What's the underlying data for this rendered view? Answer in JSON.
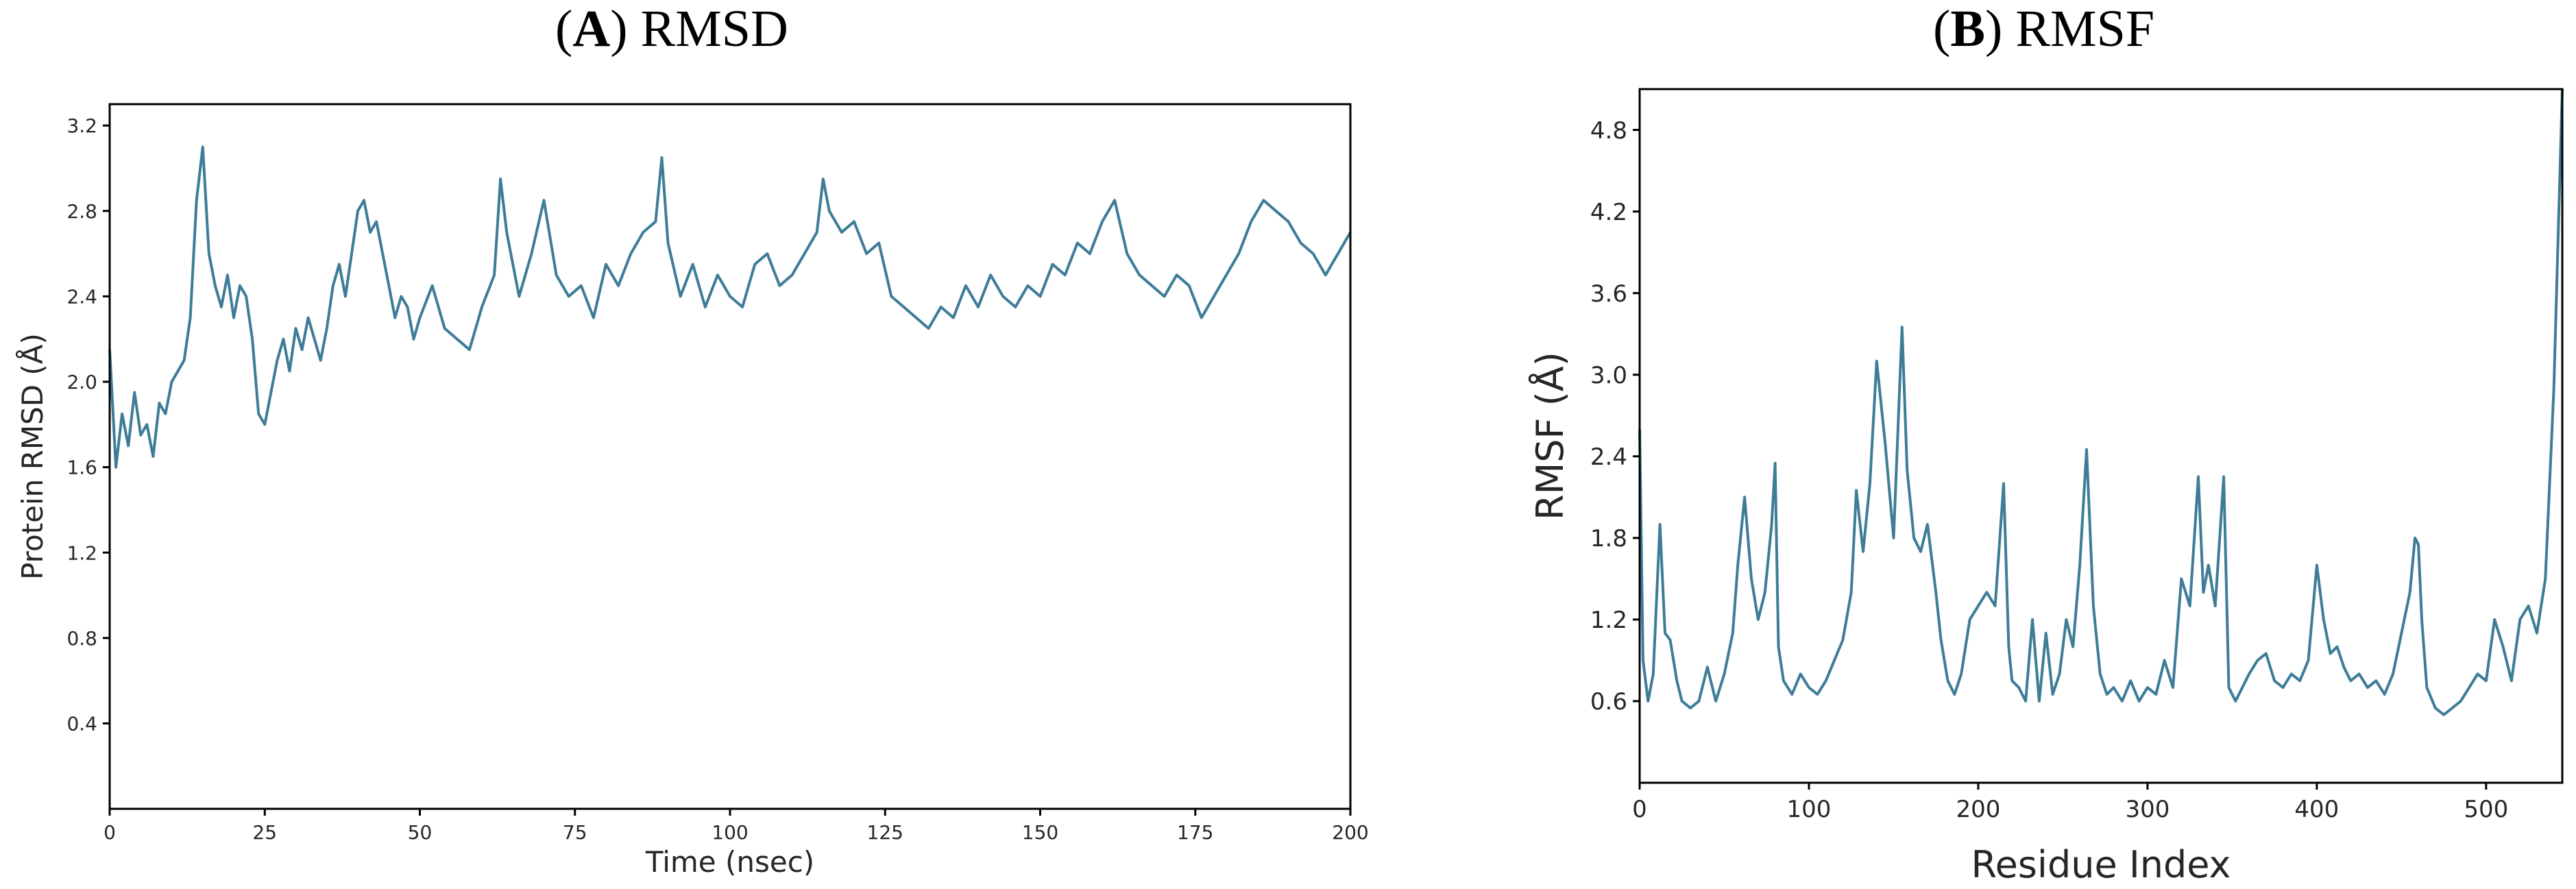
{
  "figure": {
    "panel_a": {
      "letter": "A",
      "name": "RMSD"
    },
    "panel_b": {
      "letter": "B",
      "name": "RMSF"
    }
  },
  "colors": {
    "series": "#3e7c98",
    "axes": "#000000"
  },
  "chart_data": [
    {
      "type": "line",
      "title": "(A) RMSD",
      "xlabel": "Time (nsec)",
      "ylabel": "Protein RMSD (Å)",
      "xlim": [
        0,
        200
      ],
      "ylim": [
        0,
        3.3
      ],
      "xticks": [
        0,
        25,
        50,
        75,
        100,
        125,
        150,
        175,
        200
      ],
      "yticks": [
        0.4,
        0.8,
        1.2,
        1.6,
        2.0,
        2.4,
        2.8,
        3.2
      ],
      "yticks_labels": [
        "0.4",
        "0.8",
        "1.2",
        "1.6",
        "2.0",
        "2.4",
        "2.8",
        "3.2"
      ],
      "grid": false,
      "series": [
        {
          "x": [
            0,
            1,
            2,
            3,
            4,
            5,
            6,
            7,
            8,
            9,
            10,
            11,
            12,
            13,
            14,
            15,
            16,
            17,
            18,
            19,
            20,
            21,
            22,
            23,
            24,
            25,
            26,
            27,
            28,
            29,
            30,
            31,
            32,
            33,
            34,
            35,
            36,
            37,
            38,
            39,
            40,
            41,
            42,
            43,
            44,
            45,
            46,
            47,
            48,
            49,
            50,
            52,
            54,
            56,
            58,
            60,
            62,
            63,
            64,
            66,
            68,
            70,
            72,
            74,
            76,
            78,
            80,
            82,
            84,
            86,
            88,
            89,
            90,
            92,
            94,
            96,
            98,
            100,
            102,
            104,
            106,
            108,
            110,
            112,
            114,
            115,
            116,
            118,
            120,
            122,
            124,
            126,
            128,
            130,
            132,
            134,
            136,
            138,
            140,
            142,
            144,
            146,
            148,
            150,
            152,
            154,
            156,
            158,
            160,
            162,
            164,
            166,
            168,
            170,
            172,
            174,
            176,
            178,
            180,
            182,
            184,
            186,
            188,
            190,
            192,
            194,
            196,
            198,
            200
          ],
          "y": [
            2.15,
            1.6,
            1.85,
            1.7,
            1.95,
            1.75,
            1.8,
            1.65,
            1.9,
            1.85,
            2.0,
            2.05,
            2.1,
            2.3,
            2.85,
            3.1,
            2.6,
            2.45,
            2.35,
            2.5,
            2.3,
            2.45,
            2.4,
            2.2,
            1.85,
            1.8,
            1.95,
            2.1,
            2.2,
            2.05,
            2.25,
            2.15,
            2.3,
            2.2,
            2.1,
            2.25,
            2.45,
            2.55,
            2.4,
            2.6,
            2.8,
            2.85,
            2.7,
            2.75,
            2.6,
            2.45,
            2.3,
            2.4,
            2.35,
            2.2,
            2.3,
            2.45,
            2.25,
            2.2,
            2.15,
            2.35,
            2.5,
            2.95,
            2.7,
            2.4,
            2.6,
            2.85,
            2.5,
            2.4,
            2.45,
            2.3,
            2.55,
            2.45,
            2.6,
            2.7,
            2.75,
            3.05,
            2.65,
            2.4,
            2.55,
            2.35,
            2.5,
            2.4,
            2.35,
            2.55,
            2.6,
            2.45,
            2.5,
            2.6,
            2.7,
            2.95,
            2.8,
            2.7,
            2.75,
            2.6,
            2.65,
            2.4,
            2.35,
            2.3,
            2.25,
            2.35,
            2.3,
            2.45,
            2.35,
            2.5,
            2.4,
            2.35,
            2.45,
            2.4,
            2.55,
            2.5,
            2.65,
            2.6,
            2.75,
            2.85,
            2.6,
            2.5,
            2.45,
            2.4,
            2.5,
            2.45,
            2.3,
            2.4,
            2.5,
            2.6,
            2.75,
            2.85,
            2.8,
            2.75,
            2.65,
            2.6,
            2.5,
            2.6,
            2.7
          ]
        }
      ]
    },
    {
      "type": "line",
      "title": "(B) RMSF",
      "xlabel": "Residue Index",
      "ylabel": "RMSF (Å)",
      "xlim": [
        0,
        545
      ],
      "ylim": [
        0,
        5.1
      ],
      "xticks": [
        0,
        100,
        200,
        300,
        400,
        500
      ],
      "yticks": [
        0.6,
        1.2,
        1.8,
        2.4,
        3.0,
        3.6,
        4.2,
        4.8
      ],
      "yticks_labels": [
        "0.6",
        "1.2",
        "1.8",
        "2.4",
        "3.0",
        "3.6",
        "4.2",
        "4.8"
      ],
      "grid": false,
      "series": [
        {
          "x": [
            0,
            2,
            5,
            8,
            12,
            15,
            18,
            22,
            25,
            30,
            35,
            40,
            45,
            50,
            55,
            58,
            62,
            66,
            70,
            74,
            78,
            80,
            82,
            85,
            90,
            95,
            100,
            105,
            110,
            115,
            120,
            125,
            128,
            132,
            136,
            140,
            145,
            150,
            155,
            158,
            162,
            166,
            170,
            175,
            178,
            182,
            186,
            190,
            195,
            200,
            205,
            210,
            215,
            218,
            220,
            224,
            228,
            232,
            236,
            240,
            244,
            248,
            252,
            256,
            260,
            264,
            268,
            272,
            276,
            280,
            285,
            290,
            295,
            300,
            305,
            310,
            315,
            320,
            325,
            330,
            333,
            336,
            340,
            345,
            348,
            352,
            356,
            360,
            365,
            370,
            375,
            380,
            385,
            390,
            395,
            400,
            404,
            408,
            412,
            416,
            420,
            425,
            430,
            435,
            440,
            445,
            450,
            455,
            458,
            460,
            462,
            465,
            470,
            475,
            480,
            485,
            490,
            495,
            500,
            505,
            510,
            515,
            520,
            525,
            530,
            535,
            540,
            545
          ],
          "y": [
            2.6,
            0.9,
            0.6,
            0.8,
            1.9,
            1.1,
            1.05,
            0.75,
            0.6,
            0.55,
            0.6,
            0.85,
            0.6,
            0.8,
            1.1,
            1.6,
            2.1,
            1.5,
            1.2,
            1.4,
            1.9,
            2.35,
            1.0,
            0.75,
            0.65,
            0.8,
            0.7,
            0.65,
            0.75,
            0.9,
            1.05,
            1.4,
            2.15,
            1.7,
            2.2,
            3.1,
            2.5,
            1.8,
            3.35,
            2.3,
            1.8,
            1.7,
            1.9,
            1.4,
            1.05,
            0.75,
            0.65,
            0.8,
            1.2,
            1.3,
            1.4,
            1.3,
            2.2,
            1.0,
            0.75,
            0.7,
            0.6,
            1.2,
            0.6,
            1.1,
            0.65,
            0.8,
            1.2,
            1.0,
            1.6,
            2.45,
            1.3,
            0.8,
            0.65,
            0.7,
            0.6,
            0.75,
            0.6,
            0.7,
            0.65,
            0.9,
            0.7,
            1.5,
            1.3,
            2.25,
            1.4,
            1.6,
            1.3,
            2.25,
            0.7,
            0.6,
            0.7,
            0.8,
            0.9,
            0.95,
            0.75,
            0.7,
            0.8,
            0.75,
            0.9,
            1.6,
            1.2,
            0.95,
            1.0,
            0.85,
            0.75,
            0.8,
            0.7,
            0.75,
            0.65,
            0.8,
            1.1,
            1.4,
            1.8,
            1.75,
            1.2,
            0.7,
            0.55,
            0.5,
            0.55,
            0.6,
            0.7,
            0.8,
            0.75,
            1.2,
            1.0,
            0.75,
            1.2,
            1.3,
            1.1,
            1.5,
            2.9,
            5.1
          ]
        }
      ]
    }
  ]
}
